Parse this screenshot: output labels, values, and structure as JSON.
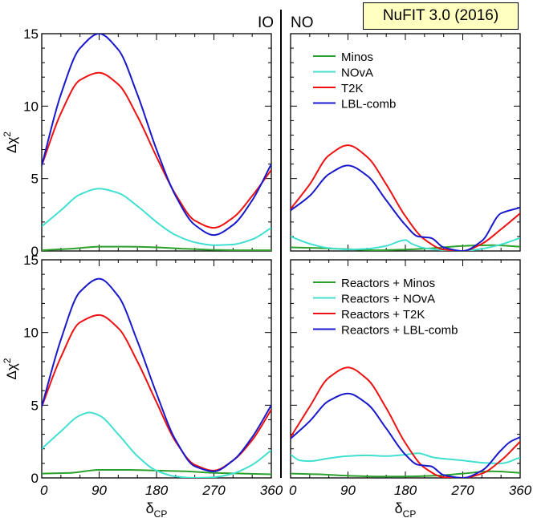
{
  "badge": "NuFIT 3.0 (2016)",
  "colors": {
    "Minos": "#2ca02c",
    "NOvA": "#40e0d0",
    "T2K": "#ee1111",
    "LBL": "#1818cc"
  },
  "chart_data": {
    "type": "line",
    "xlabel": "δ_CP",
    "ylabel": "Δχ²",
    "xlim": [
      0,
      360
    ],
    "ylim": [
      0,
      15
    ],
    "xticks": [
      "0",
      "90",
      "180",
      "270",
      "360"
    ],
    "yticks": [
      "0",
      "5",
      "10",
      "15"
    ],
    "columns": [
      "IO",
      "NO"
    ],
    "panels": [
      {
        "row": 0,
        "col": 0,
        "series": [
          {
            "key": "Minos",
            "x": [
              0,
              45,
              90,
              135,
              180,
              225,
              270,
              315,
              360
            ],
            "y": [
              0.05,
              0.15,
              0.3,
              0.3,
              0.25,
              0.15,
              0.08,
              0.05,
              0.05
            ]
          },
          {
            "key": "NOvA",
            "x": [
              0,
              30,
              60,
              90,
              120,
              150,
              180,
              210,
              240,
              270,
              300,
              330,
              360
            ],
            "y": [
              1.7,
              2.8,
              3.9,
              4.3,
              4.0,
              3.1,
              2.0,
              1.1,
              0.6,
              0.4,
              0.45,
              0.8,
              1.6
            ]
          },
          {
            "key": "T2K",
            "x": [
              0,
              30,
              60,
              90,
              120,
              150,
              180,
              210,
              240,
              270,
              300,
              330,
              360
            ],
            "y": [
              5.9,
              9.5,
              11.8,
              12.3,
              11.5,
              9.3,
              6.5,
              3.9,
              2.1,
              1.6,
              2.3,
              3.8,
              5.6
            ]
          },
          {
            "key": "LBL",
            "x": [
              0,
              30,
              60,
              90,
              120,
              150,
              180,
              210,
              240,
              270,
              300,
              330,
              360
            ],
            "y": [
              5.9,
              10.8,
              14.0,
              15.0,
              13.9,
              10.8,
              7.0,
              3.8,
              1.8,
              1.1,
              1.8,
              3.5,
              6.0
            ]
          }
        ]
      },
      {
        "row": 0,
        "col": 1,
        "legend": [
          "Minos",
          "NOvA",
          "T2K",
          "LBL-comb"
        ],
        "series": [
          {
            "key": "Minos",
            "x": [
              0,
              45,
              90,
              135,
              180,
              225,
              270,
              315,
              360
            ],
            "y": [
              0.25,
              0.2,
              0.12,
              0.05,
              0.1,
              0.2,
              0.35,
              0.4,
              0.3
            ]
          },
          {
            "key": "NOvA",
            "x": [
              0,
              30,
              60,
              90,
              120,
              150,
              180,
              190,
              210,
              240,
              270,
              300,
              330,
              360
            ],
            "y": [
              1.0,
              0.5,
              0.2,
              0.1,
              0.15,
              0.35,
              0.75,
              0.5,
              0.2,
              0.05,
              0.0,
              0.15,
              0.45,
              0.9
            ]
          },
          {
            "key": "T2K",
            "x": [
              0,
              30,
              60,
              90,
              120,
              150,
              180,
              210,
              240,
              270,
              300,
              330,
              360
            ],
            "y": [
              2.9,
              4.6,
              6.6,
              7.3,
              6.5,
              4.6,
              2.4,
              0.8,
              0.1,
              0.0,
              0.5,
              1.5,
              2.6
            ]
          },
          {
            "key": "LBL",
            "x": [
              0,
              30,
              60,
              90,
              120,
              150,
              180,
              200,
              220,
              240,
              270,
              300,
              330,
              360
            ],
            "y": [
              2.8,
              3.8,
              5.3,
              5.9,
              5.2,
              3.5,
              1.8,
              1.0,
              0.9,
              0.25,
              0.0,
              0.7,
              2.6,
              3.0
            ]
          }
        ]
      },
      {
        "row": 1,
        "col": 0,
        "series": [
          {
            "key": "Minos",
            "x": [
              0,
              45,
              90,
              135,
              180,
              225,
              270,
              315,
              360
            ],
            "y": [
              0.3,
              0.35,
              0.55,
              0.55,
              0.5,
              0.45,
              0.35,
              0.3,
              0.25
            ]
          },
          {
            "key": "NOvA",
            "x": [
              0,
              30,
              60,
              75,
              90,
              120,
              150,
              180,
              210,
              240,
              270,
              300,
              330,
              360
            ],
            "y": [
              2.0,
              3.2,
              4.3,
              4.5,
              4.3,
              3.0,
              1.5,
              0.5,
              0.1,
              0.0,
              0.05,
              0.3,
              0.9,
              1.9
            ]
          },
          {
            "key": "T2K",
            "x": [
              0,
              30,
              60,
              90,
              120,
              150,
              180,
              210,
              240,
              270,
              300,
              330,
              360
            ],
            "y": [
              4.9,
              8.3,
              10.7,
              11.2,
              10.3,
              8.0,
              5.2,
              2.5,
              0.9,
              0.5,
              1.2,
              2.6,
              4.7
            ]
          },
          {
            "key": "LBL",
            "x": [
              0,
              30,
              60,
              90,
              120,
              150,
              180,
              210,
              240,
              270,
              300,
              330,
              360
            ],
            "y": [
              4.9,
              9.5,
              12.8,
              13.7,
              12.5,
              9.4,
              5.8,
              2.6,
              0.8,
              0.45,
              1.2,
              2.8,
              5.0
            ]
          }
        ]
      },
      {
        "row": 1,
        "col": 1,
        "legend": [
          "Reactors + Minos",
          "Reactors + NOvA",
          "Reactors + T2K",
          "Reactors + LBL-comb"
        ],
        "series": [
          {
            "key": "Minos",
            "x": [
              0,
              45,
              90,
              135,
              180,
              225,
              270,
              315,
              360
            ],
            "y": [
              0.3,
              0.25,
              0.15,
              0.1,
              0.1,
              0.15,
              0.3,
              0.45,
              0.35
            ]
          },
          {
            "key": "NOvA",
            "x": [
              0,
              15,
              30,
              60,
              90,
              120,
              150,
              180,
              200,
              225,
              270,
              300,
              330,
              360
            ],
            "y": [
              1.6,
              1.2,
              1.15,
              1.35,
              1.5,
              1.55,
              1.5,
              1.6,
              1.7,
              1.4,
              1.2,
              1.05,
              1.0,
              1.4
            ]
          },
          {
            "key": "T2K",
            "x": [
              0,
              30,
              60,
              90,
              120,
              150,
              180,
              210,
              240,
              270,
              300,
              330,
              360
            ],
            "y": [
              2.8,
              4.9,
              6.9,
              7.6,
              6.8,
              4.8,
              2.4,
              0.7,
              0.05,
              0.0,
              0.3,
              1.2,
              2.5
            ]
          },
          {
            "key": "LBL",
            "x": [
              0,
              30,
              60,
              90,
              120,
              150,
              180,
              200,
              220,
              240,
              270,
              300,
              330,
              345,
              360
            ],
            "y": [
              2.7,
              3.9,
              5.3,
              5.8,
              5.1,
              3.4,
              1.6,
              0.9,
              0.8,
              0.2,
              0.0,
              0.5,
              1.9,
              2.5,
              2.8
            ]
          }
        ]
      }
    ]
  }
}
